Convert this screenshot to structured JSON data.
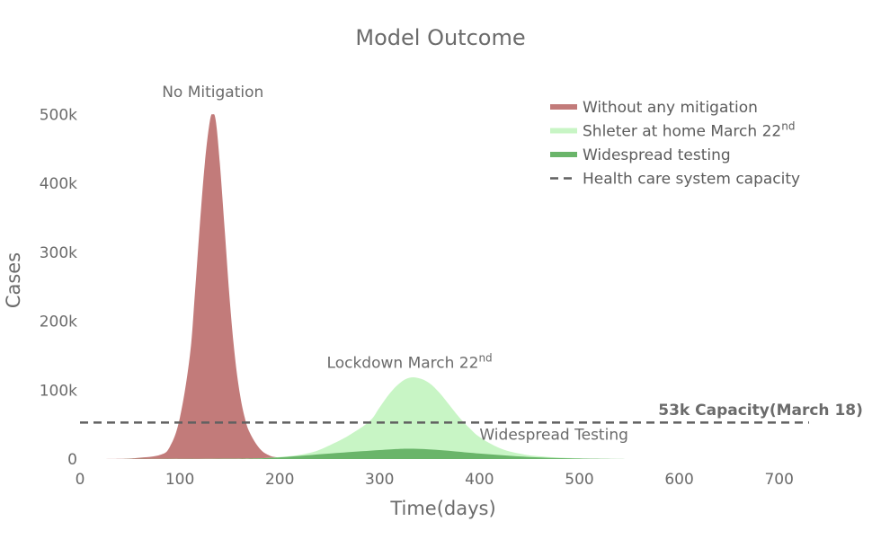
{
  "chart_data": {
    "type": "area",
    "title": "Model Outcome",
    "xlabel": "Time(days)",
    "ylabel": "Cases",
    "xlim": [
      0,
      730
    ],
    "ylim": [
      0,
      520000
    ],
    "x_ticks": [
      0,
      100,
      200,
      300,
      400,
      500,
      600,
      700
    ],
    "x_tick_labels": [
      "0",
      "100",
      "200",
      "300",
      "400",
      "500",
      "600",
      "700"
    ],
    "y_ticks": [
      0,
      100000,
      200000,
      300000,
      400000,
      500000
    ],
    "y_tick_labels": [
      "0",
      "100k",
      "200k",
      "300k",
      "400k",
      "500k"
    ],
    "grid": false,
    "legend_position": "top-right",
    "series": [
      {
        "name": "Without any mitigation",
        "color": "#c27b7a",
        "x": [
          0,
          40,
          60,
          80,
          90,
          100,
          110,
          115,
          120,
          125,
          130,
          133,
          136,
          140,
          145,
          150,
          155,
          160,
          165,
          170,
          180,
          190,
          200,
          210,
          230
        ],
        "y": [
          0,
          300,
          2000,
          6000,
          18000,
          60000,
          150000,
          240000,
          340000,
          430000,
          490000,
          500000,
          490000,
          430000,
          330000,
          230000,
          150000,
          95000,
          60000,
          38000,
          15000,
          5000,
          2000,
          500,
          0
        ]
      },
      {
        "name_main": "Shleter at home March 22",
        "name_sup": "nd",
        "color": "#c8f5c5",
        "x": [
          0,
          150,
          200,
          230,
          250,
          270,
          290,
          300,
          310,
          320,
          330,
          340,
          350,
          360,
          370,
          380,
          390,
          400,
          420,
          440,
          460,
          500,
          550
        ],
        "y": [
          0,
          500,
          3000,
          9000,
          20000,
          35000,
          55000,
          75000,
          95000,
          110000,
          118000,
          117000,
          110000,
          96000,
          78000,
          60000,
          45000,
          32000,
          16000,
          8000,
          4000,
          1000,
          0
        ]
      },
      {
        "name": "Widespread testing",
        "color": "#6ab56a",
        "x": [
          0,
          150,
          200,
          250,
          300,
          330,
          360,
          400,
          450,
          500,
          550
        ],
        "y": [
          0,
          300,
          2500,
          8000,
          13000,
          15000,
          13000,
          8000,
          3000,
          800,
          0
        ]
      }
    ],
    "capacity": {
      "name": "Health care system capacity",
      "value": 53000,
      "color": "#606060"
    },
    "annotations": {
      "no_mitigation": {
        "text": "No Mitigation",
        "x": 133,
        "y": 520000
      },
      "lockdown": {
        "text_main": "Lockdown March 22",
        "text_sup": "nd",
        "x": 330,
        "y": 132000
      },
      "widespread": {
        "text": "Widespread Testing",
        "x": 400,
        "y": 28000
      },
      "capacity": {
        "text": "53k Capacity(March 18)",
        "x": 570,
        "y": 64000
      }
    }
  }
}
